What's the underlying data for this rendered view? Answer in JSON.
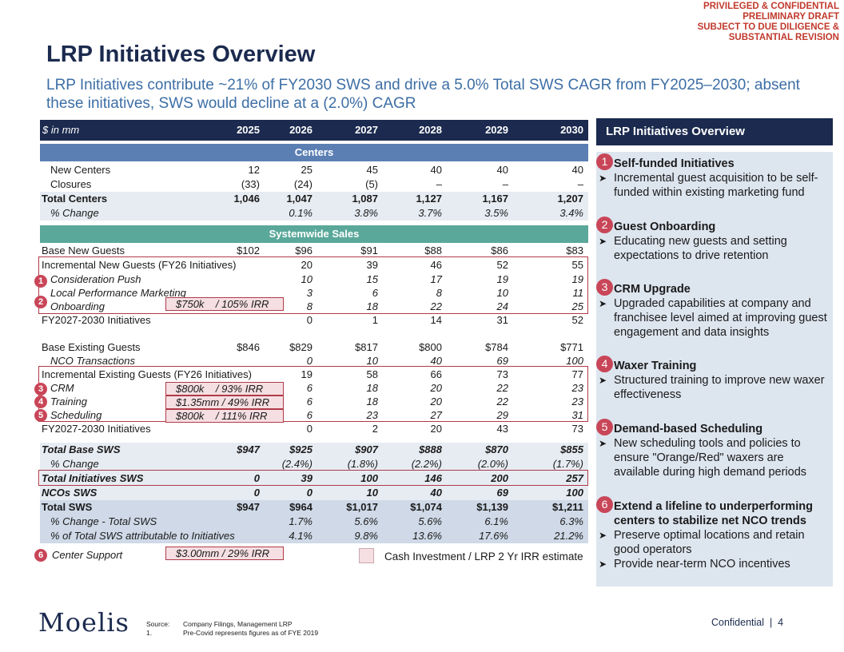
{
  "stamp": [
    "PRIVILEGED & CONFIDENTIAL",
    "PRELIMINARY DRAFT",
    "SUBJECT TO DUE DILIGENCE &",
    "SUBSTANTIAL REVISION"
  ],
  "title": "LRP Initiatives Overview",
  "subtitle": "LRP Initiatives contribute ~21% of FY2030 SWS and drive a 5.0% Total SWS CAGR from FY2025–2030; absent these initiatives, SWS would decline at a (2.0%) CAGR",
  "table": {
    "unit_label": "$ in mm",
    "years": [
      "2025",
      "2026",
      "2027",
      "2028",
      "2029",
      "2030"
    ],
    "centers_band": "Centers",
    "sws_band": "Systemwide Sales",
    "rows": {
      "new_centers": {
        "label": "New Centers",
        "values": [
          "12",
          "25",
          "45",
          "40",
          "40",
          "40"
        ]
      },
      "closures": {
        "label": "Closures",
        "values": [
          "(33)",
          "(24)",
          "(5)",
          "–",
          "–",
          "–"
        ]
      },
      "total_centers": {
        "label": "Total Centers",
        "values": [
          "1,046",
          "1,047",
          "1,087",
          "1,127",
          "1,167",
          "1,207"
        ]
      },
      "centers_change": {
        "label": "% Change",
        "values": [
          "",
          "0.1%",
          "3.8%",
          "3.7%",
          "3.5%",
          "3.4%"
        ]
      },
      "base_new": {
        "label": "Base New Guests",
        "values": [
          "$102",
          "$96",
          "$91",
          "$88",
          "$86",
          "$83"
        ]
      },
      "inc_new": {
        "label": "Incremental New Guests (FY26 Initiatives)",
        "values": [
          "",
          "20",
          "39",
          "46",
          "52",
          "55"
        ]
      },
      "consideration": {
        "label": "Consideration Push",
        "values": [
          "",
          "10",
          "15",
          "17",
          "19",
          "19"
        ]
      },
      "local_perf": {
        "label": "Local Performance Marketing",
        "values": [
          "",
          "3",
          "6",
          "8",
          "10",
          "11"
        ]
      },
      "onboarding": {
        "label": "Onboarding",
        "values": [
          "",
          "8",
          "18",
          "22",
          "24",
          "25"
        ]
      },
      "fy27_new": {
        "label": "FY2027-2030 Initiatives",
        "values": [
          "",
          "0",
          "1",
          "14",
          "31",
          "52"
        ]
      },
      "base_existing": {
        "label": "Base Existing Guests",
        "values": [
          "$846",
          "$829",
          "$817",
          "$800",
          "$784",
          "$771"
        ]
      },
      "nco": {
        "label": "NCO Transactions",
        "values": [
          "",
          "0",
          "10",
          "40",
          "69",
          "100"
        ]
      },
      "inc_existing": {
        "label": "Incremental Existing Guests (FY26 Initiatives)",
        "values": [
          "",
          "19",
          "58",
          "66",
          "73",
          "77"
        ]
      },
      "crm": {
        "label": "CRM",
        "values": [
          "",
          "6",
          "18",
          "20",
          "22",
          "23"
        ]
      },
      "training": {
        "label": "Training",
        "values": [
          "",
          "6",
          "18",
          "20",
          "22",
          "23"
        ]
      },
      "scheduling": {
        "label": "Scheduling",
        "values": [
          "",
          "6",
          "23",
          "27",
          "29",
          "31"
        ]
      },
      "fy27_existing": {
        "label": "FY2027-2030 Initiatives",
        "values": [
          "",
          "0",
          "2",
          "20",
          "43",
          "73"
        ]
      },
      "total_base": {
        "label": "Total Base SWS",
        "values": [
          "$947",
          "$925",
          "$907",
          "$888",
          "$870",
          "$855"
        ]
      },
      "base_change": {
        "label": "% Change",
        "values": [
          "",
          "(2.4%)",
          "(1.8%)",
          "(2.2%)",
          "(2.0%)",
          "(1.7%)"
        ]
      },
      "total_init": {
        "label": "Total Initiatives SWS",
        "values": [
          "0",
          "39",
          "100",
          "146",
          "200",
          "257"
        ]
      },
      "nco_sws": {
        "label": "NCOs SWS",
        "values": [
          "0",
          "0",
          "10",
          "40",
          "69",
          "100"
        ]
      },
      "total_sws": {
        "label": "Total SWS",
        "values": [
          "$947",
          "$964",
          "$1,017",
          "$1,074",
          "$1,139",
          "$1,211"
        ]
      },
      "sws_change": {
        "label": "% Change - Total SWS",
        "values": [
          "",
          "1.7%",
          "5.6%",
          "5.6%",
          "6.1%",
          "6.3%"
        ]
      },
      "pct_attr": {
        "label": "% of Total SWS attributable to Initiatives",
        "values": [
          "",
          "4.1%",
          "9.8%",
          "13.6%",
          "17.6%",
          "21.2%"
        ]
      }
    },
    "center_support_label": "Center Support",
    "irr": {
      "onboarding": "$750k    / 105% IRR",
      "crm": "$800k    / 93% IRR",
      "training": "$1.35mm / 49% IRR",
      "scheduling": "$800k    / 111% IRR",
      "center_support": "$3.00mm / 29% IRR"
    },
    "badges": {
      "b1": "1",
      "b2": "2",
      "b3": "3",
      "b4": "4",
      "b5": "5",
      "b6": "6"
    }
  },
  "legend": "Cash Investment  /  LRP 2 Yr IRR estimate",
  "panel": {
    "title": "LRP Initiatives Overview",
    "items": [
      {
        "num": "1",
        "heading": "Self-funded Initiatives",
        "bullets": [
          "Incremental guest acquisition to be self-funded within existing marketing fund"
        ]
      },
      {
        "num": "2",
        "heading": "Guest Onboarding",
        "bullets": [
          "Educating new guests and setting expectations to drive retention"
        ]
      },
      {
        "num": "3",
        "heading": "CRM Upgrade",
        "bullets": [
          "Upgraded capabilities at company and franchisee level aimed at improving guest engagement and data insights"
        ]
      },
      {
        "num": "4",
        "heading": "Waxer Training",
        "bullets": [
          "Structured training to improve new waxer effectiveness"
        ]
      },
      {
        "num": "5",
        "heading": "Demand-based Scheduling",
        "bullets": [
          "New scheduling tools and policies to ensure \"Orange/Red\"  waxers are available during high demand periods"
        ]
      },
      {
        "num": "6",
        "heading": "Extend a lifeline to underperforming centers to stabilize net NCO trends",
        "bullets": [
          "Preserve optimal locations and retain good operators",
          "Provide near-term NCO incentives"
        ]
      }
    ]
  },
  "footer": {
    "logo": "Moelis",
    "source_label": "Source:",
    "note_label": "1.",
    "source_text": "Company Filings, Management LRP",
    "note_text": "Pre-Covid represents figures as of FYE 2019",
    "confidential": "Confidential  |  4"
  },
  "colors": {
    "navy": "#1b2a4e",
    "accent": "#c84658",
    "blue": "#3d6ea5"
  }
}
